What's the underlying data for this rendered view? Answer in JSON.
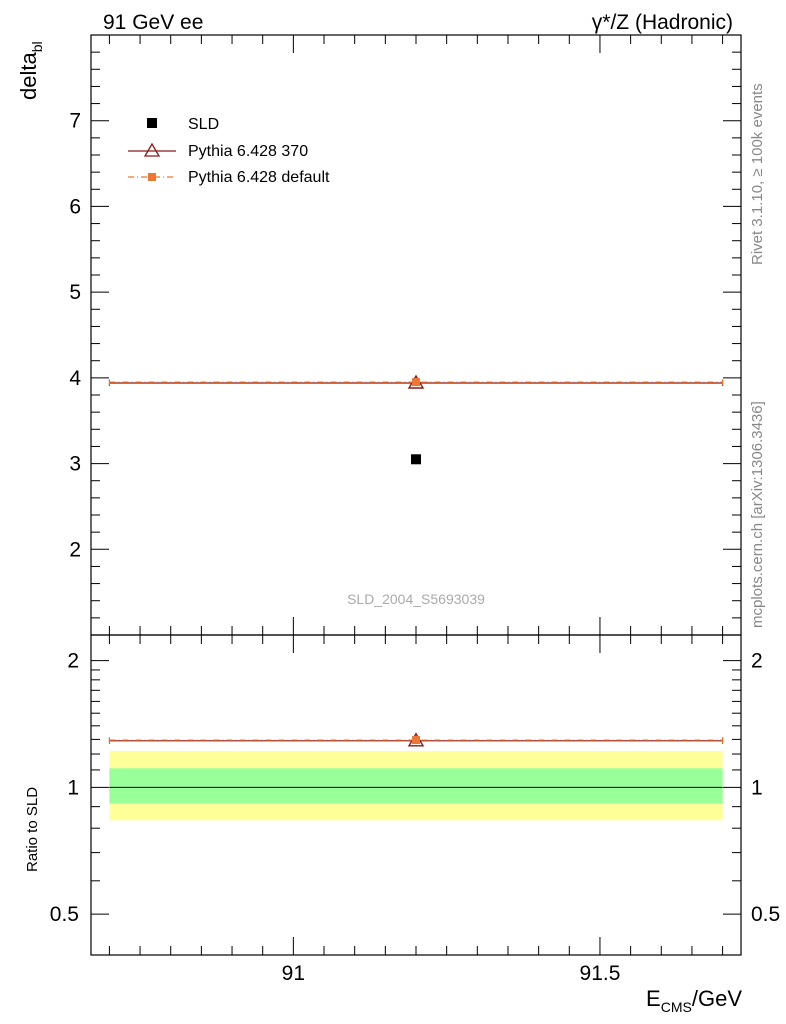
{
  "header": {
    "left_label": "91 GeV ee",
    "right_label": "γ*/Z (Hadronic)"
  },
  "side_labels": {
    "rivet": "Rivet 3.1.10, ≥ 100k events",
    "mcplots": "mcplots.cern.ch [arXiv:1306.3436]"
  },
  "watermark": "SLD_2004_S5693039",
  "chart_data": [
    {
      "type": "scatter",
      "panel": "main",
      "ylabel_main": "delta",
      "ylabel_sub": "bl",
      "xlim": [
        90.67,
        91.73
      ],
      "ylim": [
        1.0,
        8.0
      ],
      "yticks": [
        2,
        3,
        4,
        5,
        6,
        7
      ],
      "ytick_labels": [
        "2",
        "3",
        "4",
        "5",
        "6",
        "7"
      ],
      "legend_position": "top-left",
      "series": [
        {
          "name": "SLD",
          "color": "#000000",
          "marker": "square",
          "points": [
            {
              "x": 91.2,
              "y": 3.05
            }
          ]
        },
        {
          "name": "Pythia 6.428 370",
          "color": "#8b1a1a",
          "marker": "triangle",
          "style": "solid",
          "points": [
            {
              "x": 91.2,
              "y": 3.94,
              "xmin": 90.7,
              "xmax": 91.7
            }
          ]
        },
        {
          "name": "Pythia 6.428 default",
          "color": "#ee7733",
          "marker": "square",
          "style": "dashdot",
          "points": [
            {
              "x": 91.2,
              "y": 3.95,
              "xmin": 90.7,
              "xmax": 91.7
            }
          ]
        }
      ]
    },
    {
      "type": "scatter",
      "panel": "ratio",
      "ylabel": "Ratio to SLD",
      "xlabel_main": "E",
      "xlabel_sub": "CMS",
      "xlabel_unit": "/GeV",
      "xlim": [
        90.67,
        91.73
      ],
      "xticks": [
        91,
        91.5
      ],
      "xtick_labels": [
        "91",
        "91.5"
      ],
      "ylim": [
        0.4,
        2.3
      ],
      "yscale": "log",
      "yticks": [
        0.5,
        1,
        2
      ],
      "ytick_labels": [
        "0.5",
        "1",
        "2"
      ],
      "bands": [
        {
          "name": "2-sigma",
          "color": "#ffff99",
          "xmin": 90.7,
          "xmax": 91.7,
          "ymin": 0.835,
          "ymax": 1.22
        },
        {
          "name": "1-sigma",
          "color": "#99ff99",
          "xmin": 90.7,
          "xmax": 91.7,
          "ymin": 0.915,
          "ymax": 1.11
        }
      ],
      "series": [
        {
          "name": "Pythia 6.428 370",
          "color": "#8b1a1a",
          "marker": "triangle",
          "points": [
            {
              "x": 91.2,
              "y": 1.29,
              "xmin": 90.7,
              "xmax": 91.7
            }
          ]
        },
        {
          "name": "Pythia 6.428 default",
          "color": "#ee7733",
          "marker": "square",
          "points": [
            {
              "x": 91.2,
              "y": 1.295,
              "xmin": 90.7,
              "xmax": 91.7
            }
          ]
        }
      ]
    }
  ]
}
